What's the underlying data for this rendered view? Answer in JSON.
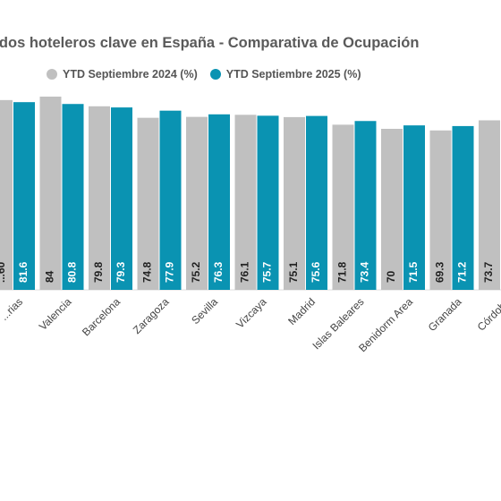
{
  "chart_data": {
    "type": "bar",
    "title": "...ados hoteleros clave en España - Comparativa de Ocupación",
    "categories": [
      "...rias",
      "Valencia",
      "Barcelona",
      "Zaragoza",
      "Sevilla",
      "Vizcaya",
      "Madrid",
      "Islas Baleares",
      "Benidorm Area",
      "Granada",
      "Córdoba"
    ],
    "series": [
      {
        "name": "YTD Septiembre 2024 (%)",
        "color": "#c0c0c0",
        "values": [
          82.5,
          84,
          79.8,
          74.8,
          75.2,
          76.1,
          75.1,
          71.8,
          70,
          69.3,
          73.7
        ]
      },
      {
        "name": "YTD Septiembre 2025 (%)",
        "color": "#0a93b2",
        "values": [
          81.6,
          80.8,
          79.3,
          77.9,
          76.3,
          75.7,
          75.6,
          73.4,
          71.5,
          71.2,
          null
        ]
      }
    ],
    "value_labels_2024": [
      "...60",
      "84",
      "79.8",
      "74.8",
      "75.2",
      "76.1",
      "75.1",
      "71.8",
      "70",
      "69.3",
      "73.7"
    ],
    "value_labels_2025": [
      "81.6",
      "80.8",
      "79.3",
      "77.9",
      "76.3",
      "75.7",
      "75.6",
      "73.4",
      "71.5",
      "71.2",
      ""
    ],
    "legend_position": "top",
    "grid": false
  }
}
